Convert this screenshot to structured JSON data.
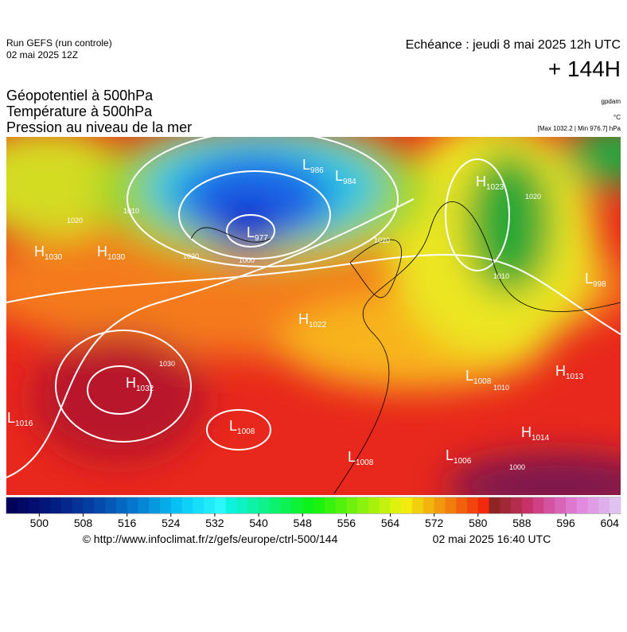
{
  "header": {
    "run": "Run GEFS (run controle)",
    "run_date": "02 mai 2025 12Z",
    "valid": "Echéance : jeudi 8 mai 2025 12h UTC",
    "lead": "+ 144H"
  },
  "titles": [
    "Géopotentiel à 500hPa",
    "Température à 500hPa",
    "Pression au niveau de la mer"
  ],
  "units": [
    "gpdam",
    "°C",
    "[Max 1032.2 | Min 976.7] hPa"
  ],
  "map": {
    "pressure_centers": [
      {
        "type": "H",
        "value": 1030
      },
      {
        "type": "H",
        "value": 1030
      },
      {
        "type": "H",
        "value": 1023
      },
      {
        "type": "L",
        "value": 986
      },
      {
        "type": "L",
        "value": 984
      },
      {
        "type": "L",
        "value": 977
      },
      {
        "type": "L",
        "value": 998
      },
      {
        "type": "H",
        "value": 1022
      },
      {
        "type": "H",
        "value": 1032
      },
      {
        "type": "L",
        "value": 1016
      },
      {
        "type": "L",
        "value": 1008
      },
      {
        "type": "L",
        "value": 1008
      },
      {
        "type": "H",
        "value": 1013
      },
      {
        "type": "H",
        "value": 1014
      },
      {
        "type": "L",
        "value": 1008
      },
      {
        "type": "L",
        "value": 1006
      }
    ],
    "contour_labels": [
      "1000",
      "1010",
      "1020",
      "1030",
      "1020",
      "1010",
      "1000",
      "1020",
      "1010",
      "1020"
    ]
  },
  "colorbar": {
    "range": [
      494,
      606
    ],
    "ticks": [
      500,
      508,
      516,
      524,
      532,
      540,
      548,
      556,
      564,
      572,
      580,
      588,
      596,
      604
    ]
  },
  "footer": {
    "source": "© http://www.infoclimat.fr/z/gefs/europe/ctrl-500/144",
    "generated": "02 mai 2025 16:40 UTC"
  }
}
